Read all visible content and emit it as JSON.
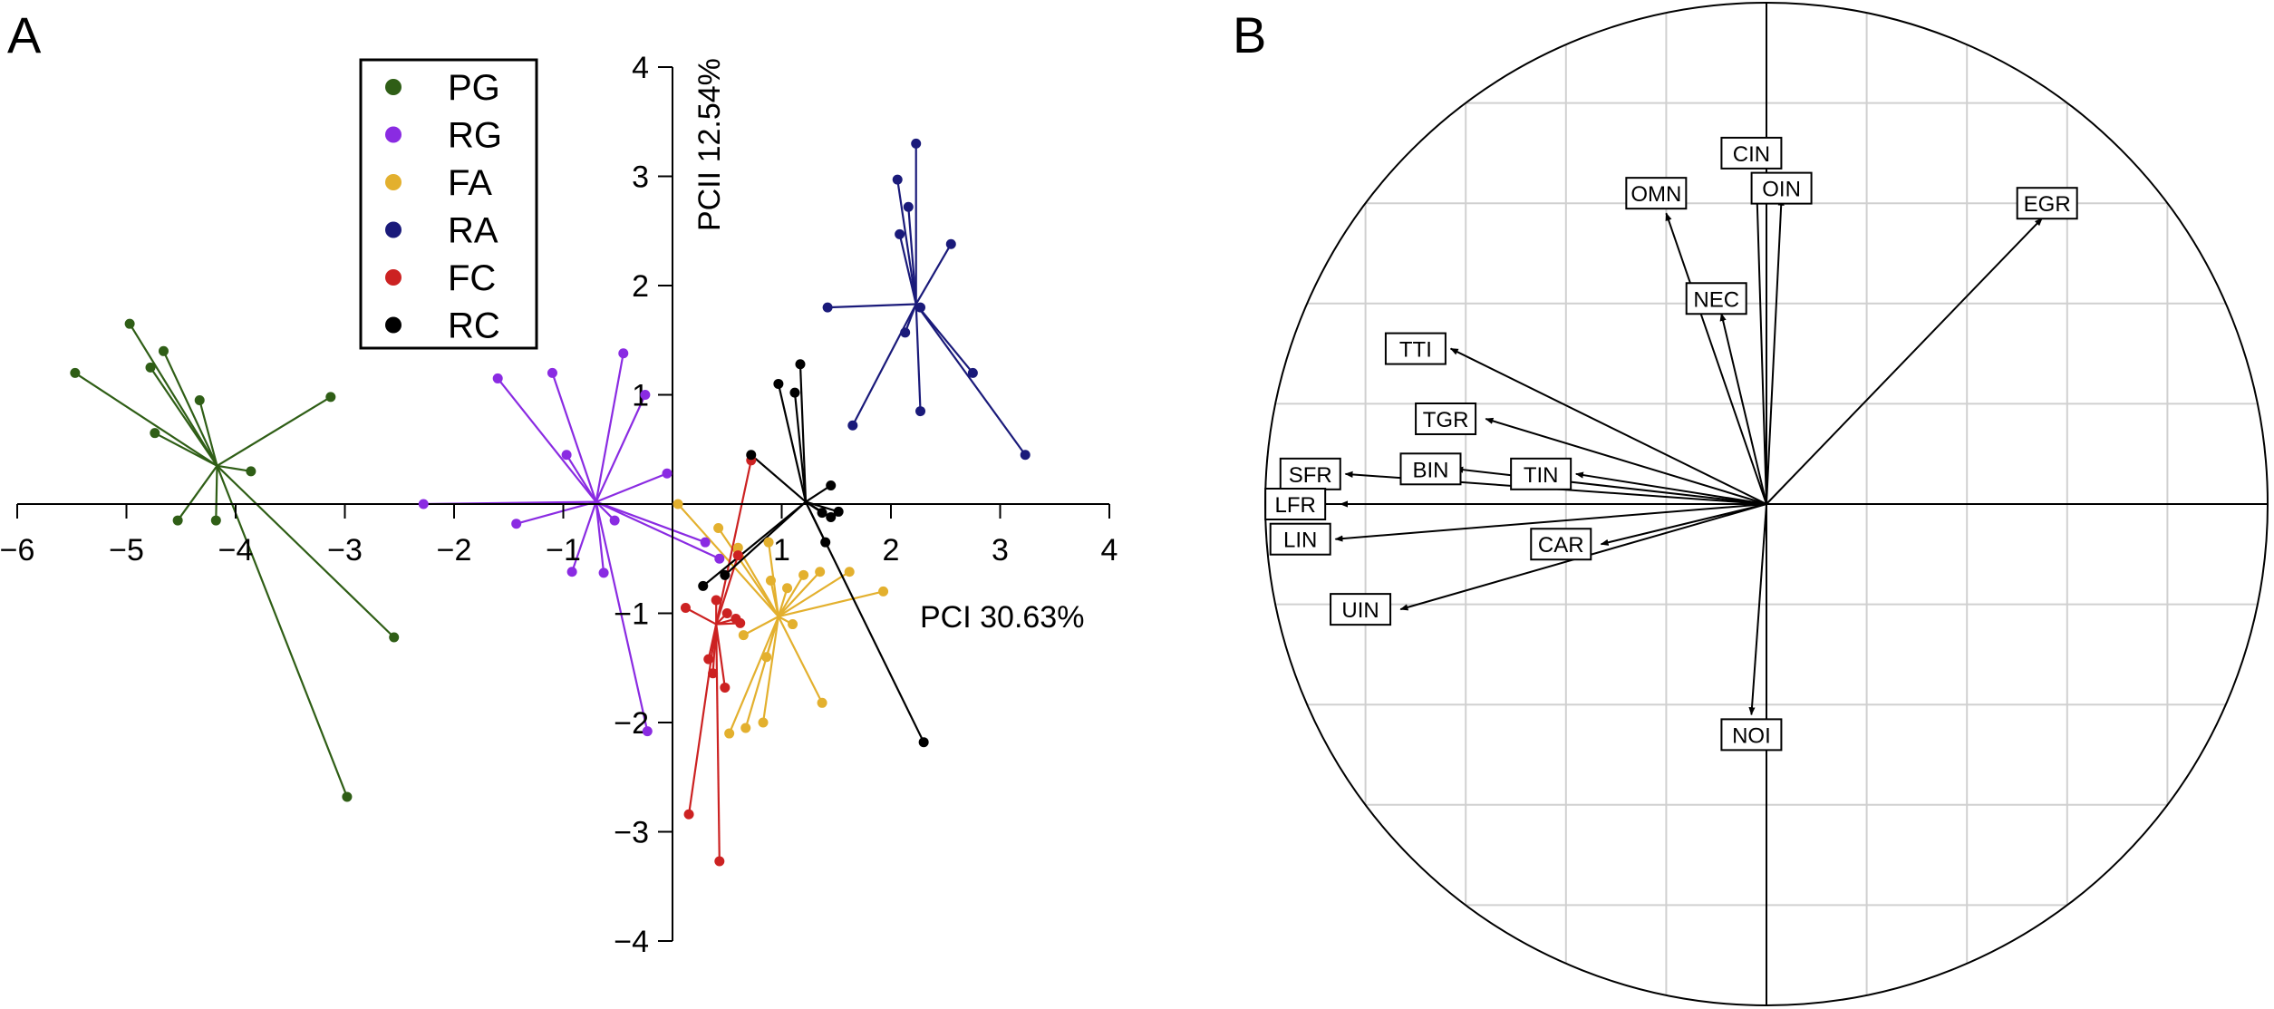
{
  "panel_labels": {
    "a": "A",
    "b": "B"
  },
  "colors": {
    "PG": "#2f5e16",
    "RG": "#8a2be2",
    "FA": "#e3b02e",
    "RA": "#1a1a7a",
    "FC": "#cc2222",
    "RC": "#000000",
    "axis": "#000000",
    "grid": "#d0d0d0"
  },
  "chart_data": [
    {
      "type": "scatter",
      "panel": "A",
      "xlabel": "PCI 30.63%",
      "ylabel": "PCII 12.54%",
      "xlim": [
        -6,
        4
      ],
      "ylim": [
        -4,
        4
      ],
      "xticks": [
        "-6",
        "-5",
        "-4",
        "-3",
        "-2",
        "-1",
        "1",
        "2",
        "3",
        "4"
      ],
      "xtick_values": [
        -6,
        -5,
        -4,
        -3,
        -2,
        -1,
        1,
        2,
        3,
        4
      ],
      "yticks": [
        "4",
        "3",
        "2",
        "1",
        "-1",
        "-2",
        "-3",
        "-4"
      ],
      "ytick_values": [
        4,
        3,
        2,
        1,
        -1,
        -2,
        -3,
        -4
      ],
      "legend": {
        "placement": "top-left-center",
        "entries": [
          "PG",
          "RG",
          "FA",
          "RA",
          "FC",
          "RC"
        ]
      },
      "series": [
        {
          "name": "PG",
          "centroid": [
            -4.17,
            0.35
          ],
          "points": [
            [
              -5.47,
              1.2
            ],
            [
              -4.97,
              1.65
            ],
            [
              -4.66,
              1.4
            ],
            [
              -4.78,
              1.25
            ],
            [
              -4.33,
              0.95
            ],
            [
              -4.74,
              0.65
            ],
            [
              -4.53,
              -0.15
            ],
            [
              -4.18,
              -0.15
            ],
            [
              -3.86,
              0.3
            ],
            [
              -3.13,
              0.98
            ],
            [
              -2.55,
              -1.22
            ],
            [
              -2.98,
              -2.68
            ]
          ]
        },
        {
          "name": "RG",
          "centroid": [
            -0.7,
            0.02
          ],
          "points": [
            [
              -2.28,
              0.0
            ],
            [
              -1.6,
              1.15
            ],
            [
              -1.1,
              1.2
            ],
            [
              -1.43,
              -0.18
            ],
            [
              -0.97,
              0.45
            ],
            [
              -0.45,
              1.38
            ],
            [
              -0.25,
              1.0
            ],
            [
              -0.53,
              -0.15
            ],
            [
              -0.05,
              0.28
            ],
            [
              -0.92,
              -0.62
            ],
            [
              -0.63,
              -0.63
            ],
            [
              0.3,
              -0.35
            ],
            [
              0.43,
              -0.5
            ],
            [
              -0.23,
              -2.08
            ]
          ]
        },
        {
          "name": "FA",
          "centroid": [
            0.97,
            -1.03
          ],
          "points": [
            [
              0.05,
              0.0
            ],
            [
              0.42,
              -0.22
            ],
            [
              0.6,
              -0.4
            ],
            [
              0.88,
              -0.35
            ],
            [
              0.9,
              -0.7
            ],
            [
              1.05,
              -0.77
            ],
            [
              1.2,
              -0.65
            ],
            [
              1.35,
              -0.62
            ],
            [
              1.62,
              -0.62
            ],
            [
              1.93,
              -0.8
            ],
            [
              0.65,
              -1.2
            ],
            [
              0.86,
              -1.4
            ],
            [
              1.1,
              -1.1
            ],
            [
              1.37,
              -1.82
            ],
            [
              0.67,
              -2.05
            ],
            [
              0.52,
              -2.1
            ],
            [
              0.83,
              -2.0
            ]
          ]
        },
        {
          "name": "RA",
          "centroid": [
            2.23,
            1.83
          ],
          "points": [
            [
              2.23,
              3.3
            ],
            [
              2.06,
              2.97
            ],
            [
              2.16,
              2.72
            ],
            [
              2.55,
              2.38
            ],
            [
              1.42,
              1.8
            ],
            [
              2.27,
              1.8
            ],
            [
              2.13,
              1.57
            ],
            [
              2.75,
              1.2
            ],
            [
              2.27,
              0.85
            ],
            [
              1.65,
              0.72
            ],
            [
              3.23,
              0.45
            ],
            [
              2.08,
              2.47
            ]
          ]
        },
        {
          "name": "FC",
          "centroid": [
            0.4,
            -1.1
          ],
          "points": [
            [
              0.6,
              -0.47
            ],
            [
              0.72,
              0.4
            ],
            [
              0.4,
              -0.88
            ],
            [
              0.5,
              -1.0
            ],
            [
              0.58,
              -1.05
            ],
            [
              0.62,
              -1.09
            ],
            [
              0.12,
              -0.95
            ],
            [
              0.33,
              -1.42
            ],
            [
              0.37,
              -1.55
            ],
            [
              0.48,
              -1.68
            ],
            [
              0.15,
              -2.84
            ],
            [
              0.43,
              -3.27
            ]
          ]
        },
        {
          "name": "RC",
          "centroid": [
            1.22,
            0.02
          ],
          "points": [
            [
              0.97,
              1.1
            ],
            [
              1.12,
              1.02
            ],
            [
              1.17,
              1.28
            ],
            [
              0.72,
              0.45
            ],
            [
              1.45,
              0.17
            ],
            [
              1.52,
              -0.07
            ],
            [
              1.37,
              -0.08
            ],
            [
              1.45,
              -0.12
            ],
            [
              1.4,
              -0.35
            ],
            [
              0.48,
              -0.65
            ],
            [
              0.28,
              -0.75
            ],
            [
              2.3,
              -2.18
            ]
          ]
        }
      ]
    },
    {
      "type": "correlation_circle",
      "panel": "B",
      "xlim": [
        -1,
        1
      ],
      "ylim": [
        -1,
        1
      ],
      "grid": true,
      "grid_step": 0.2,
      "variables": [
        {
          "name": "CIN",
          "x": -0.02,
          "y": 0.65,
          "label": [
            -0.03,
            0.7
          ]
        },
        {
          "name": "OIN",
          "x": 0.03,
          "y": 0.61,
          "label": [
            0.03,
            0.63
          ]
        },
        {
          "name": "OMN",
          "x": -0.2,
          "y": 0.58,
          "label": [
            -0.22,
            0.62
          ]
        },
        {
          "name": "EGR",
          "x": 0.55,
          "y": 0.57,
          "label": [
            0.56,
            0.6
          ]
        },
        {
          "name": "NEC",
          "x": -0.09,
          "y": 0.38,
          "label": [
            -0.1,
            0.41
          ]
        },
        {
          "name": "TTI",
          "x": -0.63,
          "y": 0.31,
          "label": [
            -0.7,
            0.31
          ]
        },
        {
          "name": "TGR",
          "x": -0.56,
          "y": 0.17,
          "label": [
            -0.64,
            0.17
          ]
        },
        {
          "name": "BIN",
          "x": -0.62,
          "y": 0.07,
          "label": [
            -0.67,
            0.07
          ]
        },
        {
          "name": "TIN",
          "x": -0.38,
          "y": 0.06,
          "label": [
            -0.45,
            0.06
          ]
        },
        {
          "name": "SFR",
          "x": -0.84,
          "y": 0.06,
          "label": [
            -0.91,
            0.06
          ]
        },
        {
          "name": "LFR",
          "x": -0.85,
          "y": 0.0,
          "label": [
            -0.94,
            0.0
          ]
        },
        {
          "name": "LIN",
          "x": -0.86,
          "y": -0.07,
          "label": [
            -0.93,
            -0.07
          ]
        },
        {
          "name": "CAR",
          "x": -0.33,
          "y": -0.08,
          "label": [
            -0.41,
            -0.08
          ]
        },
        {
          "name": "UIN",
          "x": -0.73,
          "y": -0.21,
          "label": [
            -0.81,
            -0.21
          ]
        },
        {
          "name": "NOI",
          "x": -0.03,
          "y": -0.42,
          "label": [
            -0.03,
            -0.46
          ]
        }
      ]
    }
  ]
}
